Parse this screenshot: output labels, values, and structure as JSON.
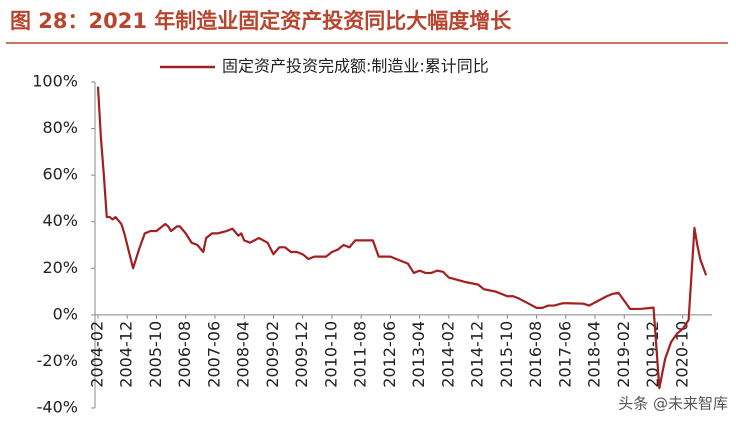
{
  "chart_data": {
    "type": "line",
    "title": "图 28：2021 年制造业固定资产投资同比大幅度增长",
    "watermark": "头条 @未来智库",
    "x": [
      "2004-02",
      "2004-03",
      "2004-04",
      "2004-05",
      "2004-06",
      "2004-07",
      "2004-08",
      "2004-10",
      "2004-11",
      "2005-02",
      "2005-04",
      "2005-06",
      "2005-08",
      "2005-10",
      "2006-01",
      "2006-02",
      "2006-03",
      "2006-05",
      "2006-06",
      "2006-08",
      "2006-10",
      "2006-12",
      "2007-02",
      "2007-03",
      "2007-05",
      "2007-07",
      "2007-10",
      "2007-12",
      "2008-02",
      "2008-03",
      "2008-04",
      "2008-06",
      "2008-09",
      "2008-12",
      "2009-02",
      "2009-04",
      "2009-06",
      "2009-08",
      "2009-10",
      "2009-12",
      "2010-02",
      "2010-04",
      "2010-08",
      "2010-10",
      "2010-12",
      "2011-02",
      "2011-04",
      "2011-06",
      "2011-08",
      "2011-12",
      "2012-02",
      "2012-06",
      "2012-08",
      "2012-12",
      "2013-02",
      "2013-04",
      "2013-06",
      "2013-08",
      "2013-10",
      "2013-12",
      "2014-02",
      "2014-05",
      "2014-08",
      "2014-12",
      "2015-02",
      "2015-06",
      "2015-10",
      "2015-12",
      "2016-02",
      "2016-05",
      "2016-08",
      "2016-10",
      "2016-12",
      "2017-02",
      "2017-05",
      "2017-07",
      "2017-12",
      "2018-02",
      "2018-05",
      "2018-08",
      "2018-10",
      "2018-12",
      "2019-02",
      "2019-04",
      "2019-08",
      "2019-12",
      "2020-02",
      "2020-03",
      "2020-04",
      "2020-06",
      "2020-08",
      "2020-10",
      "2020-12",
      "2021-02",
      "2021-03",
      "2021-04",
      "2021-05",
      "2021-06"
    ],
    "series": [
      {
        "name": "固定资产投资完成额:制造业:累计同比",
        "color": "#a3201f",
        "values": [
          98,
          76,
          60,
          42,
          42,
          41,
          42,
          39,
          35,
          20,
          28,
          35,
          36,
          36,
          39,
          38,
          36,
          38,
          38,
          35,
          31,
          30,
          27,
          33,
          35,
          35,
          36,
          37,
          34,
          35,
          32,
          31,
          33,
          31,
          26,
          29,
          29,
          27,
          27,
          26,
          24,
          25,
          25,
          27,
          28,
          30,
          29,
          32,
          32,
          32,
          25,
          25,
          24,
          22,
          18,
          19,
          18,
          18,
          19,
          18.5,
          16,
          15,
          14,
          13,
          11,
          10,
          8,
          8,
          7,
          5,
          3,
          3,
          4,
          4,
          5,
          5,
          4.8,
          4,
          6,
          8,
          9,
          9.5,
          6,
          2.5,
          2.6,
          3.1,
          -31.5,
          -25,
          -18.8,
          -11.7,
          -8.1,
          -6,
          -2.2,
          37.3,
          29.8,
          23.8,
          20.4,
          17
        ]
      }
    ],
    "xlim": [
      "2004-02",
      "2021-08"
    ],
    "xticks": [
      "2004-02",
      "2004-12",
      "2005-10",
      "2006-08",
      "2007-06",
      "2008-04",
      "2009-02",
      "2009-12",
      "2010-10",
      "2011-08",
      "2012-06",
      "2013-04",
      "2014-02",
      "2014-12",
      "2015-10",
      "2016-08",
      "2017-06",
      "2018-04",
      "2019-02",
      "2019-12",
      "2020-10"
    ],
    "ylim": [
      -40,
      100
    ],
    "yticks": [
      {
        "value": -40,
        "label": "-40%"
      },
      {
        "value": -20,
        "label": "-20%"
      },
      {
        "value": 0,
        "label": "0%"
      },
      {
        "value": 20,
        "label": "20%"
      },
      {
        "value": 40,
        "label": "40%"
      },
      {
        "value": 60,
        "label": "60%"
      },
      {
        "value": 80,
        "label": "80%"
      },
      {
        "value": 100,
        "label": "100%"
      }
    ],
    "grid": false
  }
}
